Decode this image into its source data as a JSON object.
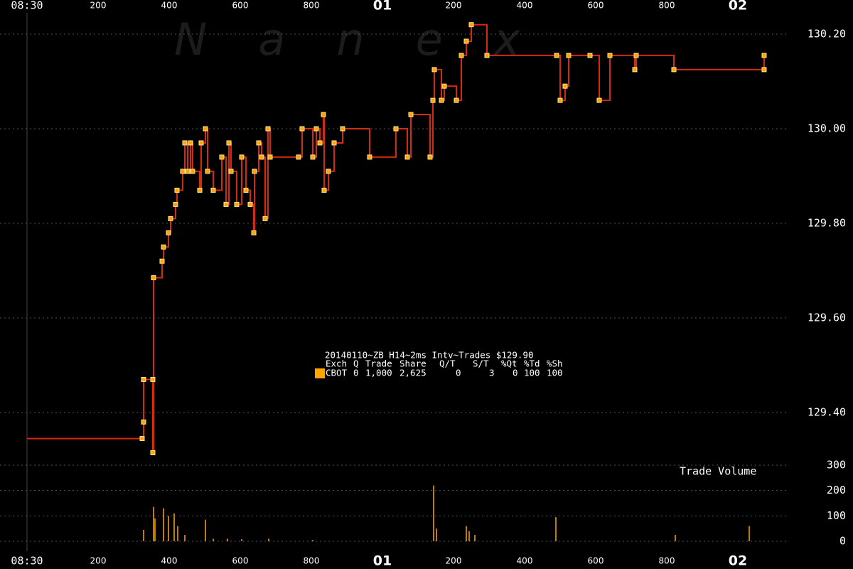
{
  "chart_data": [
    {
      "type": "line",
      "watermark": "Nanex",
      "info": {
        "title": "20140110~ZB H14~2ms Intv~Trades $129.90",
        "columns": [
          "Exch",
          "Q",
          "Trade",
          "Share",
          "Q/T",
          "S/T",
          "%Qt",
          "%Td",
          "%Sh"
        ],
        "rows": [
          [
            "CBOT",
            "0",
            "1,000",
            "2,625",
            "0",
            "3",
            "0",
            "100",
            "100"
          ]
        ]
      },
      "xlim": [
        -76,
        2324
      ],
      "xticks": [
        {
          "value": 0,
          "label": "08:30"
        },
        200,
        400,
        600,
        800,
        {
          "value": 1000,
          "label": "01"
        },
        {
          "value": 1200,
          "label": "200"
        },
        {
          "value": 1400,
          "label": "400"
        },
        {
          "value": 1600,
          "label": "600"
        },
        {
          "value": 1800,
          "label": "800"
        },
        {
          "value": 2000,
          "label": "02"
        }
      ],
      "ylim": [
        129.3,
        130.27
      ],
      "yticks": [
        {
          "value": 129.4,
          "label": "129.40"
        },
        {
          "value": 129.6,
          "label": "129.60"
        },
        {
          "value": 129.8,
          "label": "129.80"
        },
        {
          "value": 130.0,
          "label": "130.00"
        },
        {
          "value": 130.2,
          "label": "130.20"
        }
      ],
      "grid": true,
      "series": [
        {
          "name": "CBOT",
          "color": "#d42a10",
          "marker_color": "#ffa500",
          "x": [
            0,
            324,
            328,
            328,
            354,
            354,
            356,
            380,
            384,
            398,
            404,
            418,
            422,
            438,
            444,
            452,
            460,
            466,
            486,
            490,
            502,
            508,
            524,
            548,
            560,
            568,
            574,
            590,
            604,
            616,
            628,
            638,
            640,
            652,
            660,
            670,
            678,
            684,
            764,
            774,
            804,
            814,
            824,
            834,
            836,
            848,
            864,
            888,
            964,
            1038,
            1070,
            1080,
            1134,
            1142,
            1146,
            1166,
            1174,
            1208,
            1222,
            1236,
            1250,
            1294,
            1490,
            1500,
            1514,
            1524,
            1584,
            1610,
            1640,
            1710,
            1714,
            1820,
            2074,
            2074
          ],
          "values": [
            129.345,
            129.345,
            129.38,
            129.47,
            129.47,
            129.315,
            129.685,
            129.72,
            129.75,
            129.78,
            129.81,
            129.84,
            129.87,
            129.91,
            129.97,
            129.91,
            129.97,
            129.91,
            129.87,
            129.97,
            130.0,
            129.91,
            129.87,
            129.94,
            129.84,
            129.97,
            129.91,
            129.84,
            129.94,
            129.87,
            129.84,
            129.78,
            129.91,
            129.97,
            129.94,
            129.81,
            130.0,
            129.94,
            129.94,
            130.0,
            129.94,
            130.0,
            129.97,
            130.03,
            129.87,
            129.91,
            129.97,
            130.0,
            129.94,
            130.0,
            129.94,
            130.03,
            129.94,
            130.06,
            130.125,
            130.06,
            130.09,
            130.06,
            130.155,
            130.185,
            130.22,
            130.155,
            130.155,
            130.06,
            130.09,
            130.155,
            130.155,
            130.06,
            130.155,
            130.125,
            130.155,
            130.125,
            130.125,
            130.155
          ]
        }
      ]
    },
    {
      "type": "bar",
      "title": "Trade Volume",
      "xlim": [
        -76,
        2324
      ],
      "ylim": [
        0,
        300
      ],
      "yticks": [
        0,
        100,
        200,
        300
      ],
      "grid": true,
      "color": "#ffa500",
      "x": [
        328,
        356,
        360,
        384,
        398,
        414,
        424,
        444,
        502,
        524,
        564,
        604,
        680,
        804,
        1144,
        1152,
        1236,
        1244,
        1260,
        1488,
        1824,
        2032
      ],
      "values": [
        45,
        135,
        90,
        130,
        100,
        110,
        60,
        25,
        85,
        10,
        10,
        8,
        10,
        5,
        220,
        50,
        60,
        40,
        25,
        95,
        25,
        60
      ]
    }
  ]
}
